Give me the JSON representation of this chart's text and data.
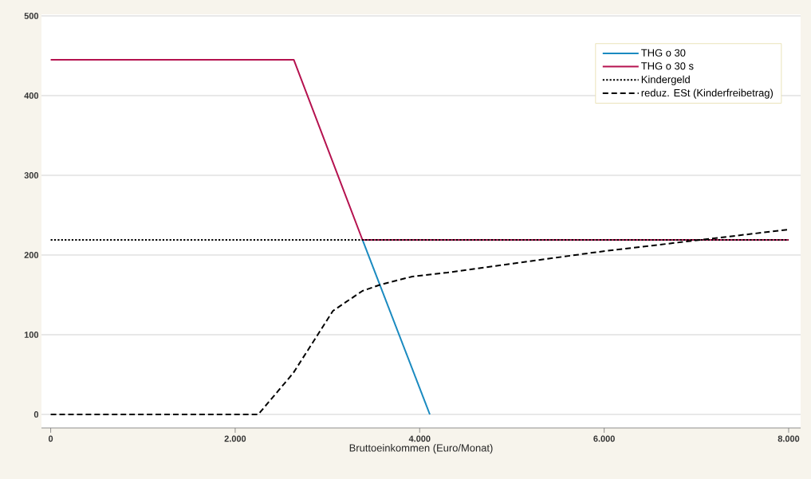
{
  "chart_data": {
    "type": "line",
    "xlabel": "Bruttoeinkommen (Euro/Monat)",
    "xlim": [
      -100,
      8130
    ],
    "ylim": [
      -17,
      502
    ],
    "xticks": [
      {
        "value": 0,
        "label": "0"
      },
      {
        "value": 2000,
        "label": "2.000"
      },
      {
        "value": 4000,
        "label": "4.000"
      },
      {
        "value": 6000,
        "label": "6.000"
      },
      {
        "value": 8000,
        "label": "8.000"
      }
    ],
    "yticks": [
      0,
      100,
      200,
      300,
      400,
      500
    ],
    "grid": "y",
    "legend": "top right",
    "series": [
      {
        "name": "THG o 30",
        "color": "#1a8ac0",
        "line_style": "solid",
        "x": [
          3380,
          4110
        ],
        "values": [
          219,
          0
        ]
      },
      {
        "name": "THG o 30 s",
        "color": "#b5124f",
        "line_style": "solid",
        "x": [
          0,
          2635,
          3380,
          8000
        ],
        "values": [
          445,
          445,
          219,
          219
        ]
      },
      {
        "name": "Kindergeld",
        "color": "#000000",
        "line_style": "dotted",
        "x": [
          0,
          8000
        ],
        "values": [
          219,
          219
        ]
      },
      {
        "name": "reduz. ESt (Kinderfreibetrag)",
        "color": "#000000",
        "line_style": "dashed",
        "x": [
          0,
          2250,
          2630,
          3060,
          3380,
          3580,
          3920,
          4300,
          5940,
          8000
        ],
        "values": [
          0,
          0,
          52,
          130,
          155,
          163,
          173,
          178,
          204,
          232
        ]
      }
    ]
  }
}
